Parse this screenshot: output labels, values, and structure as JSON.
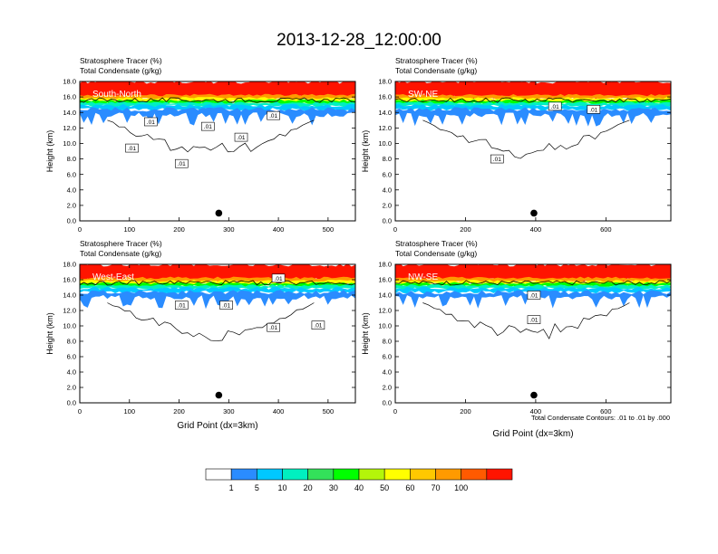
{
  "title": "2013-12-28_12:00:00",
  "footnote": "Total Condensate Contours: .01 to .01 by .000",
  "colorbar": {
    "colors": [
      "#ffffff",
      "#2a8cff",
      "#00c8ff",
      "#00f0c0",
      "#33e15a",
      "#00ff00",
      "#b4f50a",
      "#ffff00",
      "#ffc800",
      "#ff9a00",
      "#ff5a00",
      "#ff1400"
    ],
    "labels": [
      "1",
      "5",
      "10",
      "20",
      "30",
      "40",
      "50",
      "60",
      "70",
      "100"
    ]
  },
  "chart_data": [
    {
      "type": "contour",
      "panel_label": "South-North",
      "title_line1": "Stratosphere Tracer   (%)",
      "title_line2": "Total Condensate   (g/kg)",
      "ylabel": "Height (km)",
      "xlabel": "",
      "xlim": [
        0,
        555
      ],
      "ylim": [
        0,
        18
      ],
      "xticks": [
        0,
        100,
        200,
        300,
        400,
        500
      ],
      "yticks": [
        "0.0",
        "2.0",
        "4.0",
        "6.0",
        "8.0",
        "10.0",
        "12.0",
        "14.0",
        "16.0",
        "18.0"
      ],
      "marker": {
        "x": 280,
        "y": 1.0
      },
      "contour_labels": [
        {
          "text": ".01",
          "x": 143,
          "y": 12.8
        },
        {
          "text": ".01",
          "x": 105,
          "y": 9.4
        },
        {
          "text": ".01",
          "x": 258,
          "y": 12.2
        },
        {
          "text": ".01",
          "x": 325,
          "y": 10.8
        },
        {
          "text": ".01",
          "x": 205,
          "y": 7.4
        },
        {
          "text": ".01",
          "x": 390,
          "y": 13.6
        }
      ]
    },
    {
      "type": "contour",
      "panel_label": "SW-NE",
      "title_line1": "Stratosphere Tracer   (%)",
      "title_line2": "Total Condensate   (g/kg)",
      "ylabel": "Height (km)",
      "xlabel": "",
      "xlim": [
        0,
        785
      ],
      "ylim": [
        0,
        18
      ],
      "xticks": [
        0,
        200,
        400,
        600
      ],
      "yticks": [
        "0.0",
        "2.0",
        "4.0",
        "6.0",
        "8.0",
        "10.0",
        "12.0",
        "14.0",
        "16.0",
        "18.0"
      ],
      "marker": {
        "x": 395,
        "y": 1.0
      },
      "contour_labels": [
        {
          "text": ".01",
          "x": 565,
          "y": 14.4
        },
        {
          "text": ".01",
          "x": 290,
          "y": 8.0
        },
        {
          "text": ".01",
          "x": 455,
          "y": 14.8
        }
      ]
    },
    {
      "type": "contour",
      "panel_label": "West-East",
      "title_line1": "Stratosphere Tracer   (%)",
      "title_line2": "Total Condensate   (g/kg)",
      "ylabel": "Height (km)",
      "xlabel": "Grid Point (dx=3km)",
      "xlim": [
        0,
        555
      ],
      "ylim": [
        0,
        18
      ],
      "xticks": [
        0,
        100,
        200,
        300,
        400,
        500
      ],
      "yticks": [
        "0.0",
        "2.0",
        "4.0",
        "6.0",
        "8.0",
        "10.0",
        "12.0",
        "14.0",
        "16.0",
        "18.0"
      ],
      "marker": {
        "x": 280,
        "y": 1.0
      },
      "contour_labels": [
        {
          "text": ".01",
          "x": 205,
          "y": 12.7
        },
        {
          "text": ".01",
          "x": 295,
          "y": 12.7
        },
        {
          "text": ".01",
          "x": 400,
          "y": 16.2
        },
        {
          "text": ".01",
          "x": 390,
          "y": 9.8
        },
        {
          "text": ".01",
          "x": 480,
          "y": 10.1
        }
      ]
    },
    {
      "type": "contour",
      "panel_label": "NW-SE",
      "title_line1": "Stratosphere Tracer   (%)",
      "title_line2": "Total Condensate   (g/kg)",
      "ylabel": "Height (km)",
      "xlabel": "Grid Point (dx=3km)",
      "xlim": [
        0,
        785
      ],
      "ylim": [
        0,
        18
      ],
      "xticks": [
        0,
        200,
        400,
        600
      ],
      "yticks": [
        "0.0",
        "2.0",
        "4.0",
        "6.0",
        "8.0",
        "10.0",
        "12.0",
        "14.0",
        "16.0",
        "18.0"
      ],
      "marker": {
        "x": 395,
        "y": 1.0
      },
      "contour_labels": [
        {
          "text": ".01",
          "x": 395,
          "y": 14.0
        },
        {
          "text": ".01",
          "x": 395,
          "y": 10.8
        }
      ]
    }
  ]
}
